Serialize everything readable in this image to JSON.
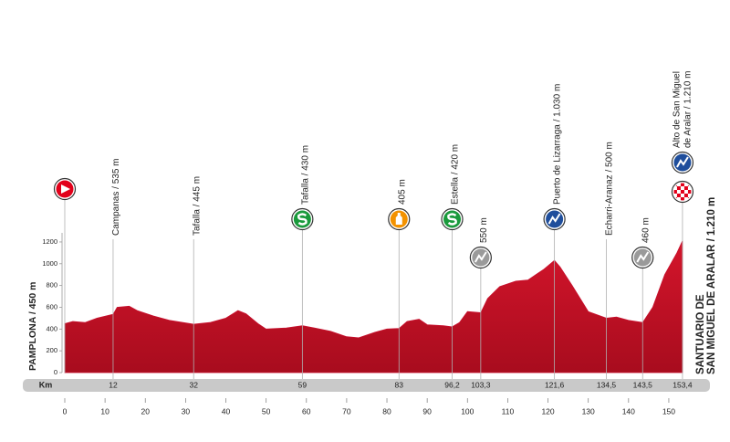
{
  "chart_data": {
    "type": "area",
    "color": "#c8102e",
    "x": [
      0,
      2,
      5,
      8,
      12,
      13,
      16,
      18,
      22,
      26,
      32,
      36,
      40,
      43,
      45,
      48,
      50,
      55,
      59,
      62,
      66,
      70,
      73,
      77,
      80,
      83,
      85,
      88,
      90,
      94,
      96.2,
      98,
      100,
      103.3,
      105,
      108,
      112,
      115,
      117,
      119,
      121.6,
      123,
      126,
      130,
      134.5,
      137,
      140,
      143.5,
      146,
      149,
      152,
      153.4
    ],
    "values": [
      450,
      470,
      460,
      500,
      535,
      600,
      610,
      570,
      520,
      480,
      445,
      460,
      500,
      570,
      540,
      450,
      400,
      410,
      430,
      410,
      380,
      330,
      320,
      370,
      400,
      405,
      470,
      490,
      440,
      430,
      420,
      460,
      560,
      550,
      680,
      790,
      840,
      850,
      900,
      950,
      1030,
      970,
      800,
      560,
      500,
      510,
      480,
      460,
      600,
      900,
      1100,
      1210
    ],
    "xlim": [
      0,
      155
    ],
    "ylim": [
      0,
      1250
    ],
    "xticks": [
      0,
      10,
      20,
      30,
      40,
      50,
      60,
      70,
      80,
      90,
      100,
      110,
      120,
      130,
      140,
      150
    ],
    "yticks": [
      0,
      200,
      400,
      600,
      800,
      1000,
      1200
    ],
    "km_label": "Km",
    "start": {
      "label": "PAMPLONA / 450 m",
      "icons": [
        "start"
      ]
    },
    "finish": {
      "label": [
        "SANTUARIO DE",
        "SAN MIGUEL DE ARALAR / 1.210 m"
      ]
    },
    "waypoints": [
      {
        "km": 12,
        "label": "Campanas / 535 m"
      },
      {
        "km": 32,
        "label": "Tafalla / 445 m"
      },
      {
        "km": 59,
        "label": "Tafalla / 430 m",
        "icons": [
          "sprint"
        ]
      },
      {
        "km": 83,
        "label": "405 m",
        "icons": [
          "feed"
        ]
      },
      {
        "km": {
          "value": 96.2,
          "label": "96,2"
        },
        "label": "Estella / 420 m",
        "icons": [
          "sprint"
        ]
      },
      {
        "km": {
          "value": 103.3,
          "label": "103,3"
        },
        "label": "550 m",
        "icons": [
          "climb-3"
        ]
      },
      {
        "km": {
          "value": 121.6,
          "label": "121,6"
        },
        "label": "Puerto de Lizarraga / 1.030 m",
        "icons": [
          "climb-1"
        ]
      },
      {
        "km": {
          "value": 134.5,
          "label": "134,5"
        },
        "label": "Echarri-Aranaz / 500 m"
      },
      {
        "km": {
          "value": 143.5,
          "label": "143,5"
        },
        "label": "460 m",
        "icons": [
          "climb-3"
        ]
      },
      {
        "km": {
          "value": 153.4,
          "label": "153,4"
        },
        "label": [
          "Alto de San Miguel",
          "de Aralar / 1.210 m"
        ],
        "icons": [
          "finish",
          "climb-1"
        ]
      }
    ]
  }
}
